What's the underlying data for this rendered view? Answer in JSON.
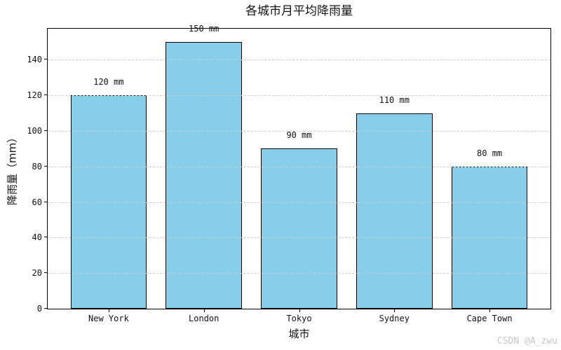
{
  "title": "各城市月平均降雨量",
  "watermark": "CSDN @A_zwu",
  "chart_data": {
    "type": "bar",
    "title": "各城市月平均降雨量",
    "xlabel": "城市",
    "ylabel": "降雨量（mm）",
    "categories": [
      "New York",
      "London",
      "Tokyo",
      "Sydney",
      "Cape Town"
    ],
    "values": [
      120,
      150,
      90,
      110,
      80
    ],
    "bar_labels": [
      "120 mm",
      "150 mm",
      "90 mm",
      "110 mm",
      "80 mm"
    ],
    "ytick_labels": [
      "0",
      "20",
      "40",
      "60",
      "80",
      "100",
      "120",
      "140"
    ],
    "yticks": [
      0,
      20,
      40,
      60,
      80,
      100,
      120,
      140
    ],
    "ylim": [
      0,
      157.5
    ],
    "grid": "horizontal-dashed",
    "legend": "none",
    "bar_color": "#87CEEB",
    "bar_edge_color": "#000000",
    "grid_color": "#cccccc"
  }
}
